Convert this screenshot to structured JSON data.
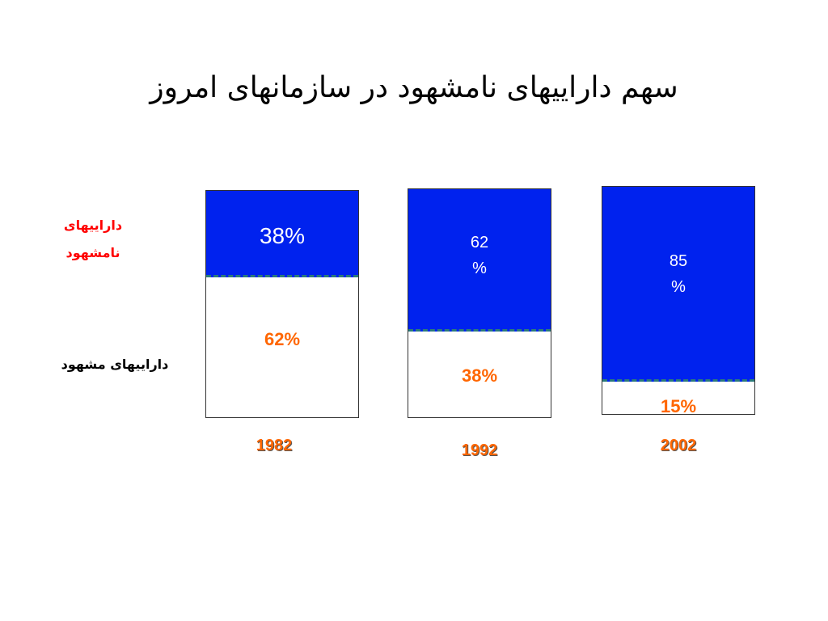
{
  "title": "سهم داراييهای نامشهود در سازمانهای امروز",
  "legend": {
    "intangible": "داراييهای\nنامشهود",
    "tangible": "داراييهای مشهود"
  },
  "colors": {
    "intangible_fill": "#0022ee",
    "label_orange": "#ff6600",
    "label_red": "#ff0000",
    "divider": "#2a7a7a"
  },
  "chart_data": {
    "type": "bar",
    "stacked": true,
    "categories": [
      "1982",
      "1992",
      "2002"
    ],
    "series": [
      {
        "name": "داراييهای نامشهود",
        "values": [
          38,
          62,
          85
        ]
      },
      {
        "name": "داراييهای مشهود",
        "values": [
          62,
          38,
          15
        ]
      }
    ],
    "top_labels": [
      "38%",
      "62\n%",
      "85\n%"
    ],
    "bottom_labels": [
      "62%",
      "38%",
      "15%"
    ],
    "unit": "%"
  }
}
